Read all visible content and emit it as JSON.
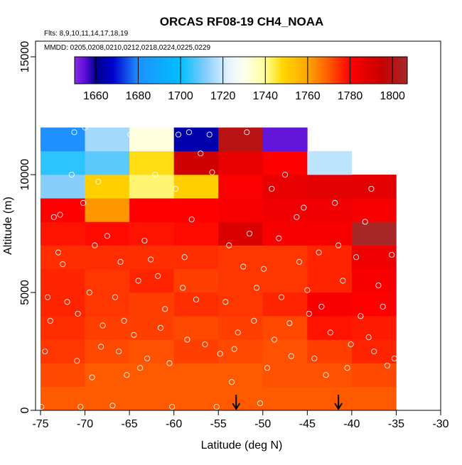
{
  "chart_data": {
    "type": "heatmap",
    "title": "ORCAS RF08-19 CH4_NOAA",
    "subtitle_flights": "Flts: 8,9,10,11,14,17,18,19",
    "subtitle_dates": "MMDD: 0205,0208,0210,0212,0218,0224,0225,0229",
    "xlabel": "Latitude (deg N)",
    "ylabel": "Altitude (m)",
    "xlim": [
      -75,
      -30
    ],
    "ylim": [
      0,
      15000
    ],
    "x_ticks": [
      -75,
      -70,
      -65,
      -60,
      -55,
      -50,
      -45,
      -40,
      -35,
      -30
    ],
    "y_ticks": [
      0,
      5000,
      10000,
      15000
    ],
    "colorbar": {
      "ticks": [
        1660,
        1680,
        1700,
        1720,
        1740,
        1760,
        1780,
        1800
      ],
      "range": [
        1650,
        1807
      ],
      "stops": [
        {
          "v": 1650,
          "c": "#8a2be2"
        },
        {
          "v": 1655,
          "c": "#5a0fd8"
        },
        {
          "v": 1660,
          "c": "#00008b"
        },
        {
          "v": 1668,
          "c": "#0000cd"
        },
        {
          "v": 1680,
          "c": "#1e90ff"
        },
        {
          "v": 1700,
          "c": "#00bfff"
        },
        {
          "v": 1712,
          "c": "#87cefa"
        },
        {
          "v": 1722,
          "c": "#e0f2ff"
        },
        {
          "v": 1730,
          "c": "#fffff0"
        },
        {
          "v": 1740,
          "c": "#ffff99"
        },
        {
          "v": 1748,
          "c": "#ffd700"
        },
        {
          "v": 1760,
          "c": "#ffa500"
        },
        {
          "v": 1770,
          "c": "#ff5a00"
        },
        {
          "v": 1780,
          "c": "#ff0000"
        },
        {
          "v": 1795,
          "c": "#c80000"
        },
        {
          "v": 1807,
          "c": "#a52a2a"
        }
      ]
    },
    "grid": {
      "lat_edges": [
        -75,
        -70,
        -65,
        -60,
        -55,
        -50,
        -45,
        -40,
        -35
      ],
      "alt_edges": [
        0,
        1000,
        2000,
        3000,
        4000,
        5000,
        6000,
        7000,
        8000,
        9000,
        10000,
        11000,
        12000
      ],
      "values": [
        [
          1770,
          1770,
          1770,
          1770,
          1770,
          1770,
          1770,
          1770
        ],
        [
          1772,
          1770,
          1770,
          1770,
          1770,
          1771,
          1771,
          1772
        ],
        [
          1774,
          1772,
          1771,
          1773,
          1772,
          1771,
          1773,
          1776
        ],
        [
          1775,
          1773,
          1773,
          1772,
          1773,
          1772,
          1778,
          1777
        ],
        [
          1776,
          1774,
          1773,
          1775,
          1774,
          1776,
          1782,
          1780
        ],
        [
          1776,
          1774,
          1776,
          1773,
          1774,
          1774,
          1776,
          1782
        ],
        [
          1775,
          1775,
          1775,
          1775,
          1774,
          1774,
          1776,
          1784
        ],
        [
          1778,
          1779,
          1778,
          1779,
          1790,
          1782,
          1782,
          1806
        ],
        [
          1780,
          1762,
          1780,
          1780,
          1782,
          1784,
          1784,
          1782
        ],
        [
          1712,
          1750,
          1742,
          1750,
          1781,
          1786,
          1788,
          1788
        ],
        [
          1704,
          1708,
          1747,
          1793,
          1786,
          1780,
          1718,
          null
        ],
        [
          1680,
          1715,
          1732,
          1664,
          1800,
          1654,
          null,
          null
        ]
      ]
    },
    "points_lat_alt": [
      [
        -74.9,
        150
      ],
      [
        -74.5,
        2500
      ],
      [
        -74.2,
        4800
      ],
      [
        -73.9,
        3800
      ],
      [
        -73.5,
        8200
      ],
      [
        -73.0,
        6700
      ],
      [
        -72.8,
        8300
      ],
      [
        -72.5,
        6200
      ],
      [
        -72.0,
        4600
      ],
      [
        -71.5,
        10000
      ],
      [
        -71.2,
        11800
      ],
      [
        -70.9,
        2100
      ],
      [
        -70.8,
        4100
      ],
      [
        -70.5,
        150
      ],
      [
        -70.2,
        8800
      ],
      [
        -70.0,
        12000
      ],
      [
        -69.5,
        5000
      ],
      [
        -69.2,
        1400
      ],
      [
        -68.9,
        7000
      ],
      [
        -68.5,
        9700
      ],
      [
        -68.2,
        2700
      ],
      [
        -68.0,
        3600
      ],
      [
        -67.5,
        7400
      ],
      [
        -66.9,
        200
      ],
      [
        -66.6,
        4800
      ],
      [
        -66.2,
        2500
      ],
      [
        -66.0,
        6300
      ],
      [
        -65.6,
        3800
      ],
      [
        -65.3,
        1500
      ],
      [
        -64.9,
        11700
      ],
      [
        -64.5,
        3200
      ],
      [
        -64.0,
        5500
      ],
      [
        -63.8,
        1800
      ],
      [
        -63.3,
        7200
      ],
      [
        -63.0,
        2200
      ],
      [
        -62.6,
        6400
      ],
      [
        -62.1,
        10000
      ],
      [
        -61.8,
        5700
      ],
      [
        -61.5,
        3500
      ],
      [
        -61.0,
        4300
      ],
      [
        -60.5,
        2000
      ],
      [
        -60.2,
        150
      ],
      [
        -59.8,
        9400
      ],
      [
        -59.5,
        11700
      ],
      [
        -59.0,
        5200
      ],
      [
        -58.8,
        6500
      ],
      [
        -58.5,
        3000
      ],
      [
        -58.3,
        11800
      ],
      [
        -58.0,
        8100
      ],
      [
        -57.5,
        4700
      ],
      [
        -57.0,
        10900
      ],
      [
        -56.5,
        2800
      ],
      [
        -56.0,
        11700
      ],
      [
        -55.7,
        10100
      ],
      [
        -55.2,
        150
      ],
      [
        -54.8,
        2400
      ],
      [
        -54.2,
        4600
      ],
      [
        -53.8,
        7000
      ],
      [
        -53.5,
        1200
      ],
      [
        -53.2,
        2600
      ],
      [
        -52.8,
        3300
      ],
      [
        -52.2,
        6100
      ],
      [
        -51.8,
        11800
      ],
      [
        -51.5,
        7500
      ],
      [
        -51.0,
        3800
      ],
      [
        -50.7,
        5200
      ],
      [
        -50.3,
        300
      ],
      [
        -49.9,
        6000
      ],
      [
        -49.5,
        1800
      ],
      [
        -49.0,
        9400
      ],
      [
        -48.7,
        3000
      ],
      [
        -48.2,
        7300
      ],
      [
        -47.9,
        4800
      ],
      [
        -47.5,
        10000
      ],
      [
        -47.0,
        3700
      ],
      [
        -46.8,
        2300
      ],
      [
        -46.2,
        8200
      ],
      [
        -45.9,
        6300
      ],
      [
        -45.4,
        8600
      ],
      [
        -45.0,
        5100
      ],
      [
        -44.8,
        4100
      ],
      [
        -44.2,
        2200
      ],
      [
        -43.7,
        6700
      ],
      [
        -43.4,
        4400
      ],
      [
        -42.9,
        1500
      ],
      [
        -42.4,
        3300
      ],
      [
        -41.9,
        8800
      ],
      [
        -41.5,
        7000
      ],
      [
        -41.0,
        5500
      ],
      [
        -40.5,
        1800
      ],
      [
        -40.1,
        2800
      ],
      [
        -39.5,
        6500
      ],
      [
        -39.0,
        4000
      ],
      [
        -38.5,
        8000
      ],
      [
        -38.1,
        3100
      ],
      [
        -37.8,
        9400
      ],
      [
        -37.5,
        2500
      ],
      [
        -37.0,
        5300
      ],
      [
        -36.5,
        4400
      ],
      [
        -36.0,
        1900
      ],
      [
        -35.5,
        6600
      ],
      [
        -35.2,
        2200
      ]
    ],
    "arrows_lat": [
      -53.0,
      -41.5
    ]
  }
}
